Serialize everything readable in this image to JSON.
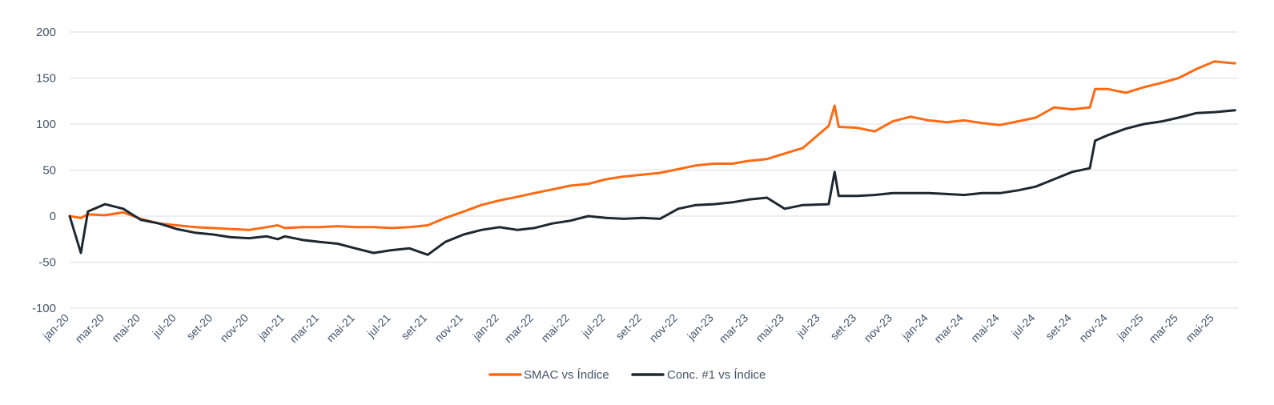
{
  "chart_data": {
    "type": "line",
    "title": "",
    "xlabel": "",
    "ylabel": "",
    "ylim": [
      -100,
      200
    ],
    "yticks": [
      200,
      150,
      100,
      50,
      0,
      -50,
      -100
    ],
    "grid": true,
    "legend_position": "bottom",
    "x_tick_labels": [
      "jan-20",
      "mar-20",
      "mai-20",
      "jul-20",
      "set-20",
      "nov-20",
      "jan-21",
      "mar-21",
      "mai-21",
      "jul-21",
      "set-21",
      "nov-21",
      "jan-22",
      "mar-22",
      "mai-22",
      "jul-22",
      "set-22",
      "nov-22",
      "jan-23",
      "mar-23",
      "mai-23",
      "jul-23",
      "set-23",
      "nov-23",
      "jan-24",
      "mar-24",
      "mai-24",
      "jul-24",
      "set-24",
      "nov-24",
      "jan-25",
      "mar-25",
      "mai-25"
    ],
    "x": [
      "2020-01-01",
      "2020-01-20",
      "2020-02-01",
      "2020-03-01",
      "2020-04-01",
      "2020-05-01",
      "2020-06-01",
      "2020-07-01",
      "2020-08-01",
      "2020-09-01",
      "2020-10-01",
      "2020-11-01",
      "2020-12-01",
      "2020-12-20",
      "2021-01-01",
      "2021-02-01",
      "2021-03-01",
      "2021-04-01",
      "2021-05-01",
      "2021-06-01",
      "2021-07-01",
      "2021-08-01",
      "2021-09-01",
      "2021-10-01",
      "2021-11-01",
      "2021-12-01",
      "2022-01-01",
      "2022-02-01",
      "2022-03-01",
      "2022-04-01",
      "2022-05-01",
      "2022-06-01",
      "2022-07-01",
      "2022-08-01",
      "2022-09-01",
      "2022-10-01",
      "2022-11-01",
      "2022-12-01",
      "2023-01-01",
      "2023-02-01",
      "2023-03-01",
      "2023-04-01",
      "2023-05-01",
      "2023-06-01",
      "2023-07-15",
      "2023-07-25",
      "2023-08-01",
      "2023-09-01",
      "2023-10-01",
      "2023-11-01",
      "2023-12-01",
      "2024-01-01",
      "2024-02-01",
      "2024-03-01",
      "2024-04-01",
      "2024-05-01",
      "2024-06-01",
      "2024-07-01",
      "2024-08-01",
      "2024-09-01",
      "2024-10-01",
      "2024-10-10",
      "2024-11-01",
      "2024-12-01",
      "2025-01-01",
      "2025-02-01",
      "2025-03-01",
      "2025-04-01",
      "2025-05-01",
      "2025-06-05"
    ],
    "series": [
      {
        "name": "SMAC vs Índice",
        "color": "#ff6a13",
        "values": [
          0,
          -2,
          2,
          1,
          4,
          -3,
          -8,
          -10,
          -12,
          -13,
          -14,
          -15,
          -12,
          -10,
          -13,
          -12,
          -12,
          -11,
          -12,
          -12,
          -13,
          -12,
          -10,
          -2,
          5,
          12,
          17,
          21,
          25,
          29,
          33,
          35,
          40,
          43,
          45,
          47,
          51,
          55,
          57,
          57,
          60,
          62,
          68,
          74,
          98,
          120,
          97,
          96,
          92,
          103,
          108,
          104,
          102,
          104,
          101,
          99,
          103,
          107,
          118,
          116,
          118,
          138,
          138,
          134,
          140,
          145,
          150,
          160,
          168,
          166
        ]
      },
      {
        "name": "Conc. #1 vs Índice",
        "color": "#1f2830",
        "values": [
          0,
          -40,
          5,
          13,
          8,
          -4,
          -8,
          -14,
          -18,
          -20,
          -23,
          -24,
          -22,
          -25,
          -22,
          -26,
          -28,
          -30,
          -35,
          -40,
          -37,
          -35,
          -42,
          -28,
          -20,
          -15,
          -12,
          -15,
          -13,
          -8,
          -5,
          0,
          -2,
          -3,
          -2,
          -3,
          8,
          12,
          13,
          15,
          18,
          20,
          8,
          12,
          13,
          48,
          22,
          22,
          23,
          25,
          25,
          25,
          24,
          23,
          25,
          25,
          28,
          32,
          40,
          48,
          52,
          82,
          88,
          95,
          100,
          103,
          107,
          112,
          113,
          115
        ]
      }
    ]
  }
}
